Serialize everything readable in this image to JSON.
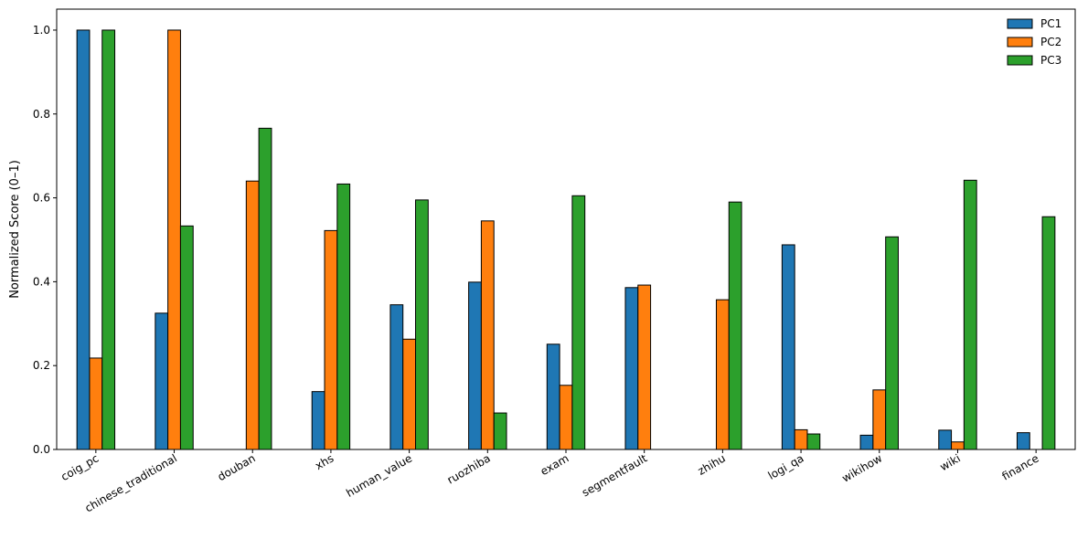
{
  "chart_data": {
    "type": "bar",
    "title": "",
    "xlabel": "",
    "ylabel": "Normalized Score (0–1)",
    "ylim": [
      0,
      1.05
    ],
    "yticks": [
      0.0,
      0.2,
      0.4,
      0.6,
      0.8,
      1.0
    ],
    "ytick_labels": [
      "0.0",
      "0.2",
      "0.4",
      "0.6",
      "0.8",
      "1.0"
    ],
    "grid": false,
    "legend_position": "top-right",
    "categories": [
      "coig_pc",
      "chinese_traditional",
      "douban",
      "xhs",
      "human_value",
      "ruozhiba",
      "exam",
      "segmentfault",
      "zhihu",
      "logi_qa",
      "wikihow",
      "wiki",
      "finance"
    ],
    "series": [
      {
        "name": "PC1",
        "color": "#1f77b4",
        "values": [
          1.0,
          0.325,
          0.0,
          0.138,
          0.345,
          0.399,
          0.251,
          0.386,
          0.0,
          0.488,
          0.034,
          0.046,
          0.04
        ]
      },
      {
        "name": "PC2",
        "color": "#ff7f0e",
        "values": [
          0.218,
          1.0,
          0.64,
          0.522,
          0.263,
          0.545,
          0.153,
          0.392,
          0.357,
          0.047,
          0.142,
          0.018,
          0.0
        ]
      },
      {
        "name": "PC3",
        "color": "#2ca02c",
        "values": [
          1.0,
          0.533,
          0.766,
          0.633,
          0.595,
          0.087,
          0.605,
          0.0,
          0.59,
          0.037,
          0.507,
          0.642,
          0.555
        ]
      }
    ]
  }
}
